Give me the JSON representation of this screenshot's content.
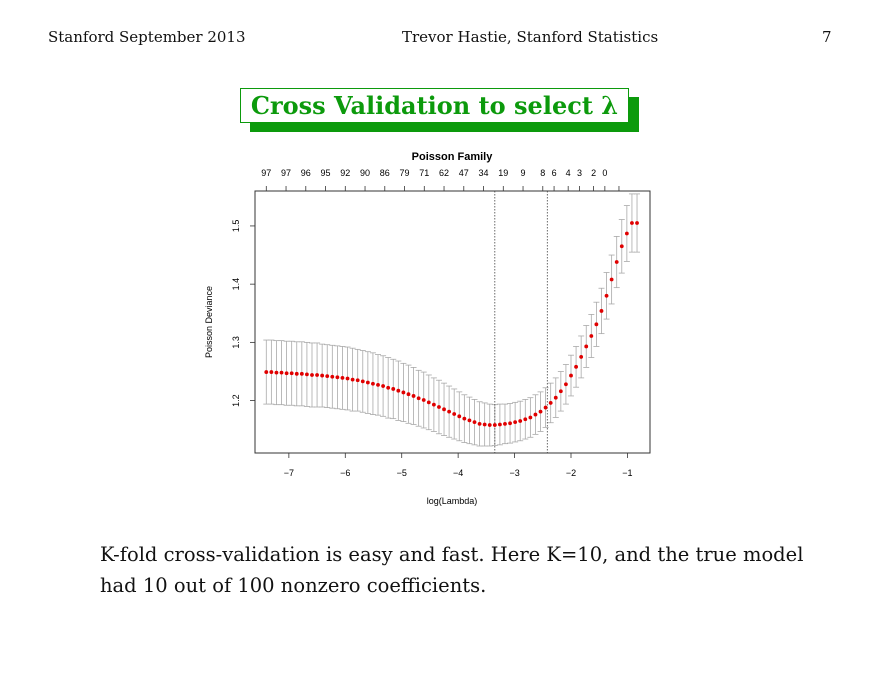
{
  "header": {
    "left": "Stanford September 2013",
    "center": "Trevor Hastie, Stanford Statistics",
    "page_number": "7"
  },
  "slide_title": "Cross Validation to select λ",
  "caption": "K-fold cross-validation is easy and fast. Here K=10, and the true model had 10 out of 100 nonzero coefficients.",
  "colors": {
    "title_green": "#0c9a0c",
    "points": "#e00000",
    "error_bars": "#a9a9a9"
  },
  "chart_data": {
    "type": "scatter",
    "title": "Poisson Family",
    "xlabel": "log(Lambda)",
    "ylabel": "Poisson Deviance",
    "xlim": [
      -7.6,
      -0.6
    ],
    "ylim": [
      1.11,
      1.56
    ],
    "xticks": [
      -7,
      -6,
      -5,
      -4,
      -3,
      -2,
      -1
    ],
    "yticks": [
      1.2,
      1.3,
      1.4,
      1.5
    ],
    "top_axis": {
      "x": [
        -7.4,
        -7.05,
        -6.7,
        -6.35,
        -6.0,
        -5.65,
        -5.3,
        -4.95,
        -4.6,
        -4.25,
        -3.9,
        -3.55,
        -3.2,
        -2.85,
        -2.5,
        -2.3,
        -2.05,
        -1.85,
        -1.6,
        -1.4,
        -1.15
      ],
      "labels": [
        "97",
        "97",
        "96",
        "95",
        "92",
        "90",
        "86",
        "79",
        "71",
        "62",
        "47",
        "34",
        "19",
        "9",
        "8",
        "6",
        "4",
        "3",
        "2",
        "0",
        ""
      ]
    },
    "vlines": [
      -3.35,
      -2.42
    ],
    "series": [
      {
        "x": [
          -7.4,
          -7.31,
          -7.22,
          -7.13,
          -7.04,
          -6.95,
          -6.86,
          -6.77,
          -6.68,
          -6.59,
          -6.5,
          -6.41,
          -6.32,
          -6.23,
          -6.14,
          -6.05,
          -5.96,
          -5.87,
          -5.78,
          -5.69,
          -5.6,
          -5.51,
          -5.42,
          -5.33,
          -5.24,
          -5.15,
          -5.06,
          -4.97,
          -4.88,
          -4.79,
          -4.7,
          -4.61,
          -4.52,
          -4.43,
          -4.34,
          -4.25,
          -4.16,
          -4.07,
          -3.98,
          -3.89,
          -3.8,
          -3.71,
          -3.62,
          -3.53,
          -3.44,
          -3.35,
          -3.26,
          -3.17,
          -3.08,
          -2.99,
          -2.9,
          -2.81,
          -2.72,
          -2.63,
          -2.54,
          -2.45,
          -2.36,
          -2.27,
          -2.18,
          -2.09,
          -2.0,
          -1.91,
          -1.82,
          -1.73,
          -1.64,
          -1.55,
          -1.46,
          -1.37,
          -1.28,
          -1.19,
          -1.1,
          -1.01,
          -0.92,
          -0.83
        ],
        "y": [
          1.249,
          1.249,
          1.248,
          1.248,
          1.247,
          1.247,
          1.246,
          1.246,
          1.245,
          1.244,
          1.244,
          1.243,
          1.242,
          1.241,
          1.24,
          1.239,
          1.238,
          1.236,
          1.235,
          1.233,
          1.231,
          1.229,
          1.227,
          1.225,
          1.222,
          1.22,
          1.217,
          1.214,
          1.211,
          1.208,
          1.204,
          1.201,
          1.197,
          1.193,
          1.189,
          1.185,
          1.181,
          1.177,
          1.173,
          1.169,
          1.166,
          1.163,
          1.16,
          1.159,
          1.158,
          1.158,
          1.159,
          1.16,
          1.161,
          1.163,
          1.165,
          1.168,
          1.171,
          1.176,
          1.181,
          1.188,
          1.196,
          1.205,
          1.216,
          1.228,
          1.243,
          1.258,
          1.275,
          1.293,
          1.311,
          1.331,
          1.354,
          1.38,
          1.408,
          1.438,
          1.465,
          1.487,
          1.505,
          1.505
        ],
        "err": [
          0.055,
          0.055,
          0.055,
          0.055,
          0.055,
          0.055,
          0.055,
          0.055,
          0.055,
          0.055,
          0.055,
          0.054,
          0.054,
          0.054,
          0.054,
          0.054,
          0.054,
          0.054,
          0.053,
          0.053,
          0.053,
          0.053,
          0.052,
          0.052,
          0.052,
          0.051,
          0.051,
          0.05,
          0.05,
          0.049,
          0.048,
          0.048,
          0.047,
          0.046,
          0.046,
          0.045,
          0.044,
          0.043,
          0.042,
          0.041,
          0.04,
          0.039,
          0.038,
          0.037,
          0.036,
          0.035,
          0.035,
          0.034,
          0.034,
          0.034,
          0.034,
          0.034,
          0.034,
          0.034,
          0.034,
          0.034,
          0.034,
          0.034,
          0.034,
          0.034,
          0.035,
          0.035,
          0.036,
          0.036,
          0.037,
          0.038,
          0.039,
          0.04,
          0.042,
          0.044,
          0.046,
          0.048,
          0.05,
          0.05
        ]
      }
    ]
  }
}
